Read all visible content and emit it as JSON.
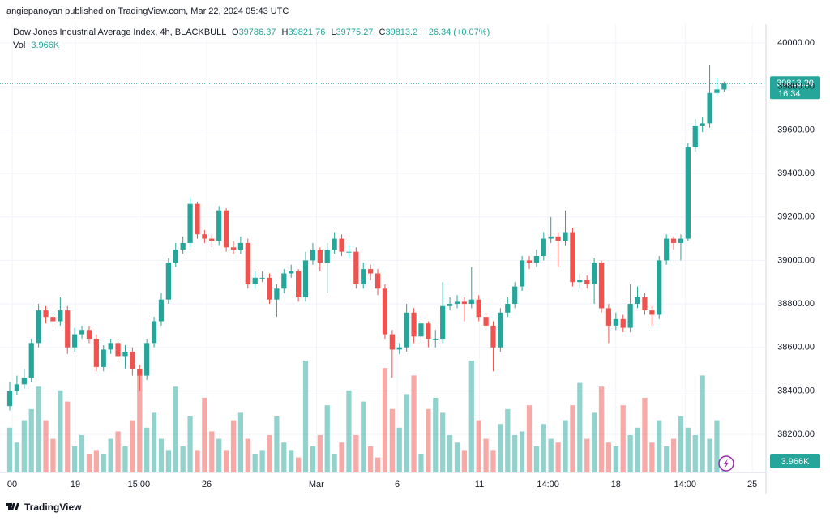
{
  "header": {
    "published": "angiepanoyan published on TradingView.com, Mar 22, 2024 05:43 UTC",
    "footer": "TradingView"
  },
  "chart_data": {
    "type": "candlestick",
    "title": "Dow Jones Industrial Average Index, 4h, BLACKBULL",
    "ohlc_letters": [
      "O",
      "H",
      "L",
      "C"
    ],
    "change": "+26.34 (+0.07%)",
    "volume_name": "Vol",
    "last_volume_label": "3.966K",
    "last_price_label": "39813.20",
    "countdown": "16:34",
    "up_color": "#26a69a",
    "down_color": "#ef5350",
    "grid": true,
    "open": [
      38330,
      38400,
      38430,
      38460,
      38620,
      38770,
      38740,
      38720,
      38770,
      38600,
      38660,
      38680,
      38640,
      38510,
      38590,
      38620,
      38560,
      38580,
      38500,
      38470,
      38620,
      38720,
      38820,
      38990,
      39050,
      39080,
      39260,
      39120,
      39100,
      39090,
      39230,
      39060,
      39050,
      39080,
      38890,
      38920,
      38920,
      38820,
      38870,
      38940,
      38950,
      38830,
      39000,
      39050,
      38990,
      39050,
      39100,
      39040,
      39040,
      38890,
      38960,
      38940,
      38870,
      38660,
      38590,
      38600,
      38760,
      38650,
      38710,
      38640,
      38640,
      38790,
      38800,
      38810,
      38800,
      38820,
      38740,
      38700,
      38600,
      38760,
      38800,
      38880,
      39000,
      38990,
      39020,
      39100,
      39110,
      39090,
      39130,
      38900,
      38910,
      38890,
      38990,
      38780,
      38700,
      38730,
      38690,
      38800,
      38830,
      38770,
      38750,
      39000,
      39100,
      39080,
      39100,
      39520,
      39620,
      39630,
      39770,
      39786.37
    ],
    "high": [
      38440,
      38470,
      38500,
      38640,
      38800,
      38790,
      38760,
      38830,
      38790,
      38690,
      38700,
      38700,
      38660,
      38610,
      38640,
      38640,
      38610,
      38600,
      38520,
      38640,
      38740,
      38850,
      39010,
      39080,
      39110,
      39290,
      39270,
      39140,
      39120,
      39250,
      39240,
      39090,
      39110,
      39100,
      38950,
      38950,
      38940,
      38890,
      38960,
      38980,
      38960,
      39040,
      39080,
      39060,
      39080,
      39130,
      39120,
      39070,
      39060,
      38990,
      38980,
      38960,
      38890,
      38680,
      38620,
      38800,
      38780,
      38730,
      38720,
      38680,
      38900,
      38830,
      38840,
      38830,
      38970,
      38840,
      38760,
      38720,
      38780,
      38830,
      38900,
      39020,
      39020,
      39050,
      39130,
      39200,
      39130,
      39230,
      39150,
      38940,
      38930,
      39010,
      39000,
      38800,
      38760,
      38750,
      38890,
      38880,
      38850,
      38790,
      39020,
      39120,
      39110,
      39120,
      39540,
      39650,
      39660,
      39900,
      39840,
      39821.76
    ],
    "low": [
      38310,
      38380,
      38410,
      38440,
      38600,
      38710,
      38690,
      38700,
      38570,
      38580,
      38640,
      38620,
      38490,
      38490,
      38570,
      38530,
      38500,
      38470,
      38400,
      38450,
      38600,
      38700,
      38800,
      38970,
      39030,
      39060,
      39100,
      39080,
      39060,
      39070,
      39040,
      39030,
      39030,
      38870,
      38870,
      38900,
      38800,
      38740,
      38850,
      38920,
      38810,
      38810,
      38980,
      38950,
      38850,
      39030,
      39020,
      39010,
      38870,
      38870,
      38910,
      38840,
      38640,
      38460,
      38570,
      38580,
      38620,
      38620,
      38600,
      38600,
      38620,
      38770,
      38780,
      38720,
      38780,
      38720,
      38680,
      38490,
      38580,
      38740,
      38780,
      38860,
      38960,
      38970,
      39000,
      39080,
      38970,
      39070,
      38880,
      38870,
      38870,
      38800,
      38760,
      38620,
      38680,
      38670,
      38670,
      38780,
      38750,
      38700,
      38730,
      38980,
      39050,
      39000,
      39090,
      39500,
      39590,
      39610,
      39760,
      39775.27
    ],
    "close": [
      38400,
      38430,
      38460,
      38620,
      38770,
      38740,
      38720,
      38770,
      38600,
      38660,
      38680,
      38640,
      38510,
      38590,
      38620,
      38560,
      38580,
      38500,
      38470,
      38620,
      38720,
      38820,
      38990,
      39050,
      39080,
      39260,
      39120,
      39100,
      39090,
      39230,
      39060,
      39050,
      39080,
      38890,
      38920,
      38920,
      38820,
      38870,
      38940,
      38950,
      38830,
      39000,
      39050,
      38990,
      39050,
      39100,
      39040,
      39040,
      38890,
      38960,
      38940,
      38870,
      38660,
      38590,
      38600,
      38760,
      38650,
      38710,
      38640,
      38640,
      38790,
      38800,
      38810,
      38800,
      38820,
      38740,
      38700,
      38600,
      38760,
      38800,
      38880,
      39000,
      38990,
      39020,
      39100,
      39110,
      39090,
      39130,
      38900,
      38910,
      38890,
      38990,
      38780,
      38700,
      38730,
      38690,
      38800,
      38830,
      38770,
      38750,
      39000,
      39100,
      39080,
      39100,
      39520,
      39620,
      39630,
      39770,
      39786.37,
      39813.2
    ],
    "volume": [
      12,
      8,
      14,
      17,
      23,
      14,
      9,
      22,
      19,
      7,
      10,
      5,
      6,
      5,
      9,
      11,
      7,
      14,
      26,
      12,
      16,
      9,
      6,
      23,
      7,
      15,
      6,
      20,
      11,
      9,
      6,
      14,
      16,
      9,
      5,
      6,
      10,
      15,
      8,
      6,
      4,
      30,
      7,
      10,
      18,
      5,
      8,
      22,
      10,
      19,
      7,
      4,
      28,
      17,
      12,
      21,
      26,
      5,
      17,
      20,
      16,
      10,
      8,
      6,
      30,
      14,
      9,
      6,
      13,
      17,
      10,
      11,
      18,
      7,
      13,
      9,
      8,
      14,
      18,
      24,
      9,
      16,
      23,
      8,
      7,
      18,
      10,
      12,
      20,
      8,
      14,
      7,
      9,
      15,
      12,
      10,
      26,
      9,
      14,
      3.966
    ],
    "ylim": [
      38025,
      40086
    ],
    "yticks": [
      {
        "value": 38200,
        "label": "38200.00"
      },
      {
        "value": 38400,
        "label": "38400.00"
      },
      {
        "value": 38600,
        "label": "38600.00"
      },
      {
        "value": 38800,
        "label": "38800.00"
      },
      {
        "value": 39000,
        "label": "39000.00"
      },
      {
        "value": 39200,
        "label": "39200.00"
      },
      {
        "value": 39400,
        "label": "39400.00"
      },
      {
        "value": 39600,
        "label": "39600.00"
      },
      {
        "value": 39800,
        "label": "39800.00"
      },
      {
        "value": 40000,
        "label": "40000.00"
      }
    ],
    "xlim": [
      -1.35,
      104.8
    ],
    "xticks": [
      {
        "value": 0.34,
        "label": "00"
      },
      {
        "value": 9.1,
        "label": "19"
      },
      {
        "value": 17.9,
        "label": "15:00"
      },
      {
        "value": 27.3,
        "label": "26"
      },
      {
        "value": 42.5,
        "label": "Mar"
      },
      {
        "value": 53.7,
        "label": "6"
      },
      {
        "value": 65.1,
        "label": "11"
      },
      {
        "value": 74.6,
        "label": "14:00"
      },
      {
        "value": 84.0,
        "label": "18"
      },
      {
        "value": 93.6,
        "label": "14:00"
      },
      {
        "value": 102.9,
        "label": "25"
      }
    ]
  }
}
